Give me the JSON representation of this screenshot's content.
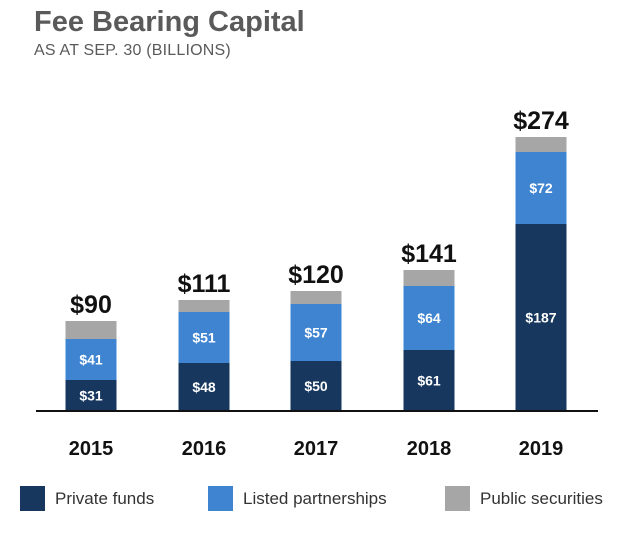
{
  "chart_data": {
    "type": "bar",
    "stacked": true,
    "title": "Fee Bearing Capital",
    "subtitle": "AS AT SEP. 30 (BILLIONS)",
    "categories": [
      "2015",
      "2016",
      "2017",
      "2018",
      "2019"
    ],
    "series": [
      {
        "name": "Private funds",
        "color": "#17375e",
        "values": [
          31,
          48,
          50,
          61,
          187
        ],
        "labels": [
          "$31",
          "$48",
          "$50",
          "$61",
          "$187"
        ]
      },
      {
        "name": "Listed partnerships",
        "color": "#3f84d0",
        "values": [
          41,
          51,
          57,
          64,
          72
        ],
        "labels": [
          "$41",
          "$51",
          "$57",
          "$64",
          "$72"
        ]
      },
      {
        "name": "Public securities",
        "color": "#a6a6a6",
        "values": [
          18,
          12,
          13,
          16,
          15
        ]
      }
    ],
    "totals": [
      90,
      111,
      120,
      141,
      274
    ],
    "total_labels": [
      "$90",
      "$111",
      "$120",
      "$141",
      "$274"
    ],
    "ylim": [
      0,
      300
    ],
    "grid": false,
    "legend_position": "bottom"
  }
}
